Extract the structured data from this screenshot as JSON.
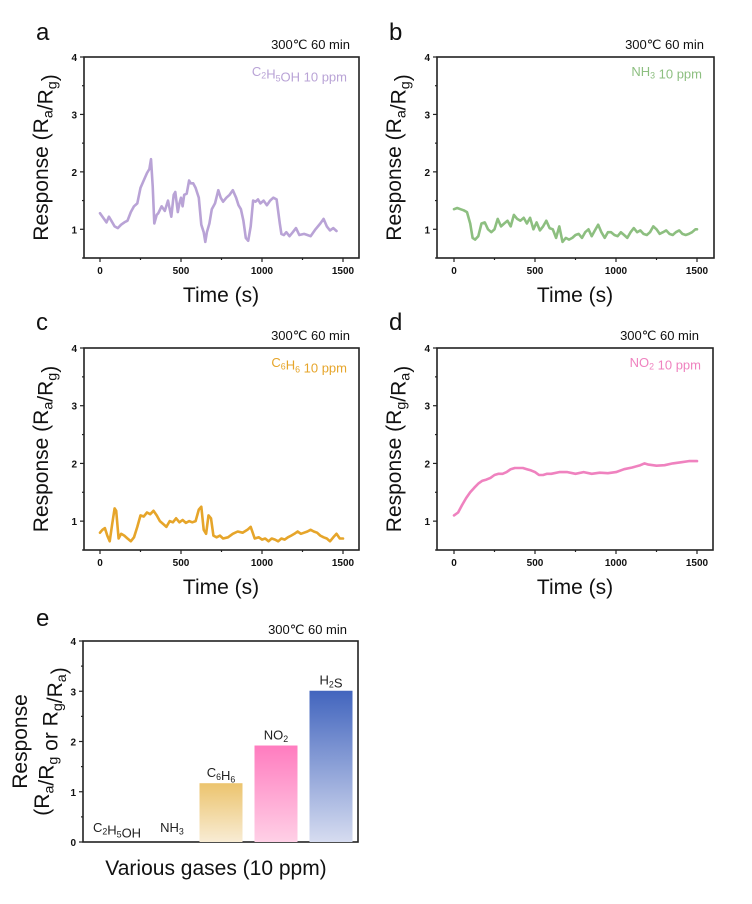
{
  "chart_data": [
    {
      "id": "a",
      "type": "line",
      "panel_letter": "a",
      "condition": "300℃ 60 min",
      "legend": {
        "text": "C2H5OH  10 ppm",
        "parts": [
          [
            "C",
            ""
          ],
          [
            "2",
            "sub"
          ],
          [
            "H",
            ""
          ],
          [
            "5",
            "sub"
          ],
          [
            "OH  10 ppm",
            ""
          ]
        ],
        "placement": "top-right"
      },
      "xlabel": "Time (s)",
      "ylabel_parts": [
        [
          "Response (R",
          ""
        ],
        [
          "a",
          "sub"
        ],
        [
          "/R",
          ""
        ],
        [
          "g",
          "sub"
        ],
        [
          ")",
          ""
        ]
      ],
      "ylabel": "Response (Ra/Rg)",
      "xlim": [
        -70,
        1570
      ],
      "ylim": [
        0.5,
        4
      ],
      "xticks": [
        0,
        500,
        1000,
        1500
      ],
      "yticks": [
        1,
        2,
        3,
        4
      ],
      "color": "#b9a3d6",
      "x": [
        0,
        20,
        40,
        55,
        70,
        90,
        110,
        130,
        150,
        170,
        190,
        210,
        230,
        250,
        270,
        290,
        305,
        315,
        325,
        335,
        350,
        360,
        380,
        400,
        420,
        440,
        455,
        465,
        480,
        490,
        500,
        510,
        520,
        535,
        550,
        560,
        575,
        590,
        610,
        625,
        640,
        650,
        660,
        675,
        690,
        710,
        730,
        745,
        760,
        780,
        800,
        820,
        840,
        855,
        870,
        885,
        900,
        915,
        930,
        945,
        960,
        975,
        990,
        1010,
        1030,
        1050,
        1070,
        1090,
        1110,
        1120,
        1135,
        1150,
        1170,
        1190,
        1210,
        1230,
        1260,
        1280,
        1300,
        1330,
        1360,
        1380,
        1400,
        1420,
        1440,
        1460,
        1480,
        1500
      ],
      "y": [
        1.28,
        1.2,
        1.12,
        1.22,
        1.15,
        1.05,
        1.02,
        1.08,
        1.12,
        1.15,
        1.3,
        1.4,
        1.45,
        1.72,
        1.85,
        1.98,
        2.05,
        2.22,
        1.75,
        1.1,
        1.25,
        1.28,
        1.4,
        1.32,
        1.5,
        1.22,
        1.6,
        1.65,
        1.3,
        1.45,
        1.55,
        1.4,
        1.6,
        1.62,
        1.85,
        1.8,
        1.8,
        1.72,
        1.55,
        1.08,
        0.95,
        0.78,
        0.95,
        1.1,
        1.35,
        1.45,
        1.68,
        1.55,
        1.48,
        1.55,
        1.6,
        1.68,
        1.55,
        1.42,
        1.35,
        1.15,
        0.85,
        0.8,
        1.05,
        1.5,
        1.48,
        1.52,
        1.45,
        1.5,
        1.42,
        1.5,
        1.55,
        1.52,
        1.1,
        0.92,
        0.9,
        0.95,
        0.88,
        0.95,
        1.02,
        0.9,
        0.92,
        0.9,
        0.88,
        1.0,
        1.1,
        1.18,
        1.05,
        0.98,
        1.02,
        0.97
      ]
    },
    {
      "id": "b",
      "type": "line",
      "panel_letter": "b",
      "condition": "300℃ 60 min",
      "legend": {
        "text": "NH3  10 ppm",
        "parts": [
          [
            "NH",
            ""
          ],
          [
            "3",
            "sub"
          ],
          [
            "  10 ppm",
            ""
          ]
        ],
        "placement": "top-right"
      },
      "xlabel": "Time (s)",
      "ylabel_parts": [
        [
          "Response (R",
          ""
        ],
        [
          "a",
          "sub"
        ],
        [
          "/R",
          ""
        ],
        [
          "g",
          "sub"
        ],
        [
          ")",
          ""
        ]
      ],
      "ylabel": "Response (Ra/Rg)",
      "xlim": [
        -70,
        1570
      ],
      "ylim": [
        0.5,
        4
      ],
      "xticks": [
        0,
        500,
        1000,
        1500
      ],
      "yticks": [
        1,
        2,
        3,
        4
      ],
      "color": "#8dbf80",
      "x": [
        0,
        20,
        40,
        60,
        80,
        100,
        115,
        130,
        150,
        170,
        190,
        210,
        230,
        250,
        270,
        290,
        310,
        330,
        350,
        370,
        390,
        410,
        430,
        450,
        470,
        490,
        510,
        530,
        550,
        570,
        590,
        610,
        630,
        650,
        670,
        690,
        710,
        730,
        750,
        770,
        790,
        810,
        830,
        850,
        870,
        890,
        910,
        930,
        950,
        970,
        990,
        1010,
        1030,
        1050,
        1070,
        1090,
        1110,
        1130,
        1150,
        1170,
        1190,
        1210,
        1230,
        1250,
        1270,
        1290,
        1310,
        1330,
        1350,
        1370,
        1390,
        1410,
        1430,
        1450,
        1470,
        1490,
        1500
      ],
      "y": [
        1.35,
        1.37,
        1.35,
        1.33,
        1.3,
        1.1,
        0.85,
        0.82,
        0.88,
        1.1,
        1.12,
        1.0,
        0.95,
        1.0,
        1.18,
        1.05,
        1.1,
        1.15,
        1.05,
        1.25,
        1.18,
        1.15,
        1.2,
        1.1,
        1.2,
        1.0,
        1.12,
        0.98,
        1.05,
        1.15,
        1.02,
        1.0,
        0.85,
        1.05,
        0.78,
        0.85,
        0.82,
        0.85,
        0.9,
        0.92,
        0.85,
        0.95,
        1.0,
        0.88,
        0.98,
        1.08,
        0.95,
        0.85,
        0.95,
        0.95,
        0.9,
        0.88,
        0.95,
        0.9,
        0.85,
        0.95,
        1.02,
        0.95,
        0.98,
        0.92,
        0.9,
        0.95,
        1.05,
        1.0,
        0.92,
        0.95,
        0.98,
        0.92,
        0.9,
        0.95,
        0.98,
        0.92,
        0.9,
        0.92,
        0.95,
        1.0,
        1.0
      ]
    },
    {
      "id": "c",
      "type": "line",
      "panel_letter": "c",
      "condition": "300℃ 60 min",
      "legend": {
        "text": "C6H6  10 ppm",
        "parts": [
          [
            "C",
            ""
          ],
          [
            "6",
            "sub"
          ],
          [
            "H",
            ""
          ],
          [
            "6",
            "sub"
          ],
          [
            "  10 ppm",
            ""
          ]
        ],
        "placement": "top-right"
      },
      "xlabel": "Time (s)",
      "ylabel_parts": [
        [
          "Response (R",
          ""
        ],
        [
          "a",
          "sub"
        ],
        [
          "/R",
          ""
        ],
        [
          "g",
          "sub"
        ],
        [
          ")",
          ""
        ]
      ],
      "ylabel": "Response (Ra/Rg)",
      "xlim": [
        -70,
        1570
      ],
      "ylim": [
        0.5,
        4
      ],
      "xticks": [
        0,
        500,
        1000,
        1500
      ],
      "yticks": [
        1,
        2,
        3,
        4
      ],
      "color": "#e6a52a",
      "x": [
        0,
        15,
        30,
        45,
        60,
        75,
        90,
        100,
        115,
        130,
        150,
        170,
        190,
        210,
        230,
        250,
        270,
        290,
        310,
        330,
        350,
        370,
        390,
        410,
        430,
        450,
        470,
        490,
        510,
        530,
        550,
        570,
        590,
        610,
        625,
        640,
        655,
        670,
        685,
        700,
        720,
        740,
        760,
        790,
        820,
        850,
        880,
        910,
        930,
        955,
        980,
        1000,
        1020,
        1040,
        1060,
        1080,
        1100,
        1120,
        1140,
        1160,
        1180,
        1200,
        1220,
        1240,
        1260,
        1280,
        1300,
        1320,
        1340,
        1360,
        1380,
        1400,
        1420,
        1440,
        1460,
        1480,
        1500
      ],
      "y": [
        0.8,
        0.85,
        0.88,
        0.75,
        0.65,
        0.95,
        1.22,
        1.18,
        0.7,
        0.78,
        0.75,
        0.7,
        0.65,
        0.72,
        0.9,
        1.1,
        1.08,
        1.15,
        1.12,
        1.18,
        1.1,
        1.0,
        0.95,
        0.9,
        1.0,
        0.98,
        1.05,
        0.98,
        1.02,
        0.97,
        1.0,
        0.98,
        1.0,
        1.2,
        1.25,
        0.85,
        0.78,
        1.1,
        1.05,
        0.75,
        0.72,
        0.75,
        0.7,
        0.72,
        0.78,
        0.82,
        0.8,
        0.85,
        0.9,
        0.7,
        0.72,
        0.68,
        0.7,
        0.65,
        0.7,
        0.68,
        0.65,
        0.7,
        0.68,
        0.72,
        0.75,
        0.78,
        0.82,
        0.78,
        0.8,
        0.82,
        0.85,
        0.82,
        0.8,
        0.75,
        0.72,
        0.7,
        0.65,
        0.72,
        0.78,
        0.7,
        0.7
      ]
    },
    {
      "id": "d",
      "type": "line",
      "panel_letter": "d",
      "condition": "300℃ 60 min",
      "legend": {
        "text": "NO2 10 ppm",
        "parts": [
          [
            "NO",
            ""
          ],
          [
            "2",
            "sub"
          ],
          [
            " 10 ppm",
            ""
          ]
        ],
        "placement": "top-right"
      },
      "xlabel": "Time (s)",
      "ylabel_parts": [
        [
          "Response (R",
          ""
        ],
        [
          "g",
          "sub"
        ],
        [
          "/R",
          ""
        ],
        [
          "a",
          "sub"
        ],
        [
          ")",
          ""
        ]
      ],
      "ylabel": "Response (Rg/Ra)",
      "xlim": [
        -70,
        1570
      ],
      "ylim": [
        0.5,
        4
      ],
      "xticks": [
        0,
        500,
        1000,
        1500
      ],
      "yticks": [
        1,
        2,
        3,
        4
      ],
      "color": "#ef82bf",
      "x": [
        0,
        25,
        50,
        75,
        100,
        125,
        150,
        175,
        200,
        225,
        250,
        275,
        300,
        325,
        350,
        375,
        400,
        425,
        450,
        475,
        500,
        525,
        550,
        575,
        600,
        650,
        700,
        750,
        800,
        850,
        900,
        950,
        1000,
        1050,
        1100,
        1150,
        1175,
        1200,
        1250,
        1300,
        1350,
        1400,
        1450,
        1500
      ],
      "y": [
        1.1,
        1.15,
        1.28,
        1.4,
        1.5,
        1.58,
        1.65,
        1.7,
        1.72,
        1.75,
        1.8,
        1.82,
        1.82,
        1.85,
        1.9,
        1.92,
        1.92,
        1.92,
        1.9,
        1.88,
        1.85,
        1.8,
        1.8,
        1.82,
        1.82,
        1.85,
        1.85,
        1.82,
        1.85,
        1.82,
        1.84,
        1.83,
        1.85,
        1.9,
        1.93,
        1.97,
        2.0,
        1.98,
        1.96,
        1.97,
        2.0,
        2.02,
        2.04,
        2.04
      ]
    },
    {
      "id": "e",
      "type": "bar",
      "panel_letter": "e",
      "condition": "300℃ 60 min",
      "xlabel": "Various  gases  (10 ppm)",
      "ylabel_line1": "Response",
      "ylabel_line2_parts": [
        [
          "(R",
          ""
        ],
        [
          "a",
          "sub"
        ],
        [
          "/R",
          ""
        ],
        [
          "g",
          "sub"
        ],
        [
          " or R",
          ""
        ],
        [
          "g",
          "sub"
        ],
        [
          "/R",
          ""
        ],
        [
          "a",
          "sub"
        ],
        [
          ")",
          ""
        ]
      ],
      "ylabel": "Response (Ra/Rg or Rg/Ra)",
      "ylim": [
        0,
        4
      ],
      "yticks": [
        0,
        1,
        2,
        3,
        4
      ],
      "categories": [
        "C2H5OH",
        "NH3",
        "C6H6",
        "NO2",
        "H2S"
      ],
      "category_parts": [
        [
          [
            "C",
            ""
          ],
          [
            "2",
            "sub"
          ],
          [
            "H",
            ""
          ],
          [
            "5",
            "sub"
          ],
          [
            "OH",
            ""
          ]
        ],
        [
          [
            "NH",
            ""
          ],
          [
            "3",
            "sub"
          ]
        ],
        [
          [
            "C",
            ""
          ],
          [
            "6",
            "sub"
          ],
          [
            "H",
            ""
          ],
          [
            "6",
            "sub"
          ]
        ],
        [
          [
            "NO",
            ""
          ],
          [
            "2",
            "sub"
          ]
        ],
        [
          [
            "H",
            ""
          ],
          [
            "2",
            "sub"
          ],
          [
            "S",
            ""
          ]
        ]
      ],
      "values": [
        0,
        0,
        1.17,
        1.92,
        3.01
      ],
      "gradients": [
        [
          "#ffffff",
          "#ffffff"
        ],
        [
          "#ffffff",
          "#ffffff"
        ],
        [
          "#ecc46e",
          "#f8ecd4"
        ],
        [
          "#ff7cbf",
          "#ffd0e6"
        ],
        [
          "#4265be",
          "#d6dcf0"
        ]
      ]
    }
  ]
}
